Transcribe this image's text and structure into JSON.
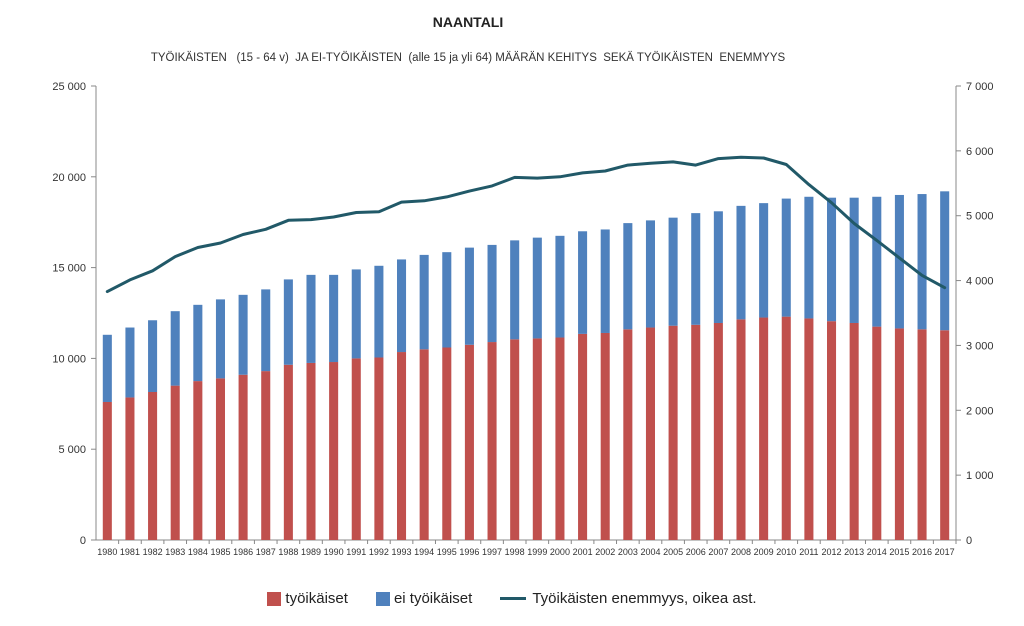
{
  "chart_data": {
    "type": "bar",
    "stacked": true,
    "title": "NAANTALI",
    "subtitle": "TYÖIKÄISTEN   (15 - 64 v)  JA EI-TYÖIKÄISTEN  (alle 15 ja yli 64) MÄÄRÄN KEHITYS  SEKÄ TYÖIKÄISTEN  ENEMMYYS",
    "categories": [
      "1980",
      "1981",
      "1982",
      "1983",
      "1984",
      "1985",
      "1986",
      "1987",
      "1988",
      "1989",
      "1990",
      "1991",
      "1992",
      "1993",
      "1994",
      "1995",
      "1996",
      "1997",
      "1998",
      "1999",
      "2000",
      "2001",
      "2002",
      "2003",
      "2004",
      "2005",
      "2006",
      "2007",
      "2008",
      "2009",
      "2010",
      "2011",
      "2012",
      "2013",
      "2014",
      "2015",
      "2016",
      "2017"
    ],
    "series": [
      {
        "name": "työikäiset",
        "color": "#c0504d",
        "axis": "left",
        "values": [
          7600,
          7850,
          8150,
          8500,
          8750,
          8900,
          9100,
          9300,
          9650,
          9750,
          9800,
          10000,
          10050,
          10350,
          10500,
          10600,
          10750,
          10900,
          11050,
          11100,
          11150,
          11350,
          11400,
          11600,
          11700,
          11800,
          11850,
          11950,
          12150,
          12250,
          12300,
          12200,
          12050,
          11950,
          11750,
          11650,
          11600,
          11550
        ]
      },
      {
        "name": "ei työikäiset",
        "color": "#4f81bd",
        "axis": "left",
        "values": [
          3700,
          3850,
          3950,
          4100,
          4200,
          4350,
          4400,
          4500,
          4700,
          4850,
          4800,
          4900,
          5050,
          5100,
          5200,
          5250,
          5350,
          5350,
          5450,
          5550,
          5600,
          5650,
          5700,
          5850,
          5900,
          5950,
          6150,
          6150,
          6250,
          6300,
          6500,
          6700,
          6800,
          6900,
          7150,
          7350,
          7450,
          7650
        ]
      },
      {
        "name": "Työikäisten enemmyys, oikea ast.",
        "color": "#215968",
        "axis": "right",
        "type": "line",
        "values": [
          3830,
          4010,
          4150,
          4370,
          4510,
          4580,
          4710,
          4790,
          4930,
          4940,
          4980,
          5050,
          5060,
          5210,
          5230,
          5290,
          5380,
          5460,
          5590,
          5580,
          5600,
          5660,
          5690,
          5780,
          5810,
          5830,
          5780,
          5880,
          5900,
          5890,
          5790,
          5480,
          5200,
          4880,
          4620,
          4350,
          4080,
          3890
        ]
      }
    ],
    "y_left": {
      "min": 0,
      "max": 25000,
      "ticks": [
        "0",
        "5 000",
        "10 000",
        "15 000",
        "20 000",
        "25 000"
      ]
    },
    "y_right": {
      "min": 0,
      "max": 7000,
      "ticks": [
        "0",
        "1 000",
        "2 000",
        "3 000",
        "4 000",
        "5 000",
        "6 000",
        "7 000"
      ]
    },
    "grid": false,
    "legend_position": "bottom"
  }
}
